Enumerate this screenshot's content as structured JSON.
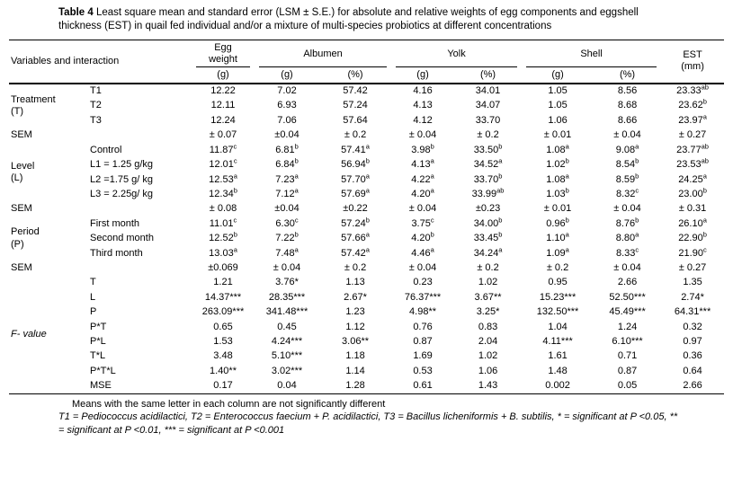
{
  "title": {
    "label": "Table 4",
    "text": "Least square mean and standard error (LSM ± S.E.) for absolute and relative weights of egg components and eggshell thickness (EST) in quail fed individual and/or a mixture of multi-species probiotics at different concentrations"
  },
  "table": {
    "variables_header": "Variables and interaction",
    "groups": [
      {
        "label": "Egg\nweight",
        "subs": [
          "(g)"
        ]
      },
      {
        "label": "Albumen",
        "subs": [
          "(g)",
          "(%)"
        ]
      },
      {
        "label": "Yolk",
        "subs": [
          "(g)",
          "(%)"
        ]
      },
      {
        "label": "Shell",
        "subs": [
          "(g)",
          "(%)"
        ]
      },
      {
        "label": "EST\n(mm)",
        "subs": []
      }
    ],
    "rows": [
      {
        "group": {
          "text": "Treatment\n(T)",
          "rowspan": 3
        },
        "label": "T1",
        "values": [
          "12.22",
          "7.02",
          "57.42",
          "4.16",
          "34.01",
          "1.05",
          "8.56",
          "23.33^ab"
        ]
      },
      {
        "label": "T2",
        "values": [
          "12.11",
          "6.93",
          "57.24",
          "4.13",
          "34.07",
          "1.05",
          "8.68",
          "23.62^b"
        ]
      },
      {
        "label": "T3",
        "values": [
          "12.24",
          "7.06",
          "57.64",
          "4.12",
          "33.70",
          "1.06",
          "8.66",
          "23.97^a"
        ]
      },
      {
        "group": {
          "text": "SEM",
          "rowspan": 1
        },
        "label": "",
        "values": [
          "± 0.07",
          "±0.04",
          "± 0.2",
          "± 0.04",
          "± 0.2",
          "± 0.01",
          "± 0.04",
          "± 0.27"
        ]
      },
      {
        "group": {
          "text": "Level\n(L)",
          "rowspan": 4
        },
        "label": "Control",
        "values": [
          "11.87^c",
          "6.81^b",
          "57.41^a",
          "3.98^b",
          "33.50^b",
          "1.08^a",
          "9.08^a",
          "23.77^ab"
        ]
      },
      {
        "label": "L1 = 1.25 g/kg",
        "values": [
          "12.01^c",
          "6.84^b",
          "56.94^b",
          "4.13^a",
          "34.52^a",
          "1.02^b",
          "8.54^b",
          "23.53^ab"
        ]
      },
      {
        "label": "L2 =1.75 g/ kg",
        "values": [
          "12.53^a",
          "7.23^a",
          "57.70^a",
          "4.22^a",
          "33.70^b",
          "1.08^a",
          "8.59^b",
          "24.25^a"
        ]
      },
      {
        "label": "L3 = 2.25g/ kg",
        "values": [
          "12.34^b",
          "7.12^a",
          "57.69^a",
          "4.20^a",
          "33.99^ab",
          "1.03^b",
          "8.32^c",
          "23.00^b"
        ]
      },
      {
        "group": {
          "text": "SEM",
          "rowspan": 1
        },
        "label": "",
        "values": [
          "± 0.08",
          "±0.04",
          "±0.22",
          "± 0.04",
          "±0.23",
          "± 0.01",
          "± 0.04",
          "± 0.31"
        ]
      },
      {
        "group": {
          "text": "Period\n(P)",
          "rowspan": 3
        },
        "label": "First month",
        "values": [
          "11.01^c",
          "6.30^c",
          "57.24^b",
          "3.75^c",
          "34.00^b",
          "0.96^b",
          "8.76^b",
          "26.10^a"
        ]
      },
      {
        "label": "Second month",
        "values": [
          "12.52^b",
          "7.22^b",
          "57.66^a",
          "4.20^b",
          "33.45^b",
          "1.10^a",
          "8.80^a",
          "22.90^b"
        ]
      },
      {
        "label": "Third month",
        "values": [
          "13.03^a",
          "7.48^a",
          "57.42^a",
          "4.46^a",
          "34.24^a",
          "1.09^a",
          "8.33^c",
          "21.90^c"
        ]
      },
      {
        "group": {
          "text": "SEM",
          "rowspan": 1
        },
        "label": "",
        "values": [
          "±0.069",
          "± 0.04",
          "± 0.2",
          "± 0.04",
          "± 0.2",
          "± 0.2",
          "± 0.04",
          "± 0.27"
        ]
      },
      {
        "group": {
          "text": "F- value",
          "rowspan": 8,
          "italic": true
        },
        "label": "T",
        "values": [
          "1.21",
          "3.76*",
          "1.13",
          "0.23",
          "1.02",
          "0.95",
          "2.66",
          "1.35"
        ]
      },
      {
        "label": "L",
        "values": [
          "14.37***",
          "28.35***",
          "2.67*",
          "76.37***",
          "3.67**",
          "15.23***",
          "52.50***",
          "2.74*"
        ]
      },
      {
        "label": "P",
        "values": [
          "263.09***",
          "341.48***",
          "1.23",
          "4.98**",
          "3.25*",
          "132.50***",
          "45.49***",
          "64.31***"
        ]
      },
      {
        "label": "P*T",
        "values": [
          "0.65",
          "0.45",
          "1.12",
          "0.76",
          "0.83",
          "1.04",
          "1.24",
          "0.32"
        ]
      },
      {
        "label": "P*L",
        "values": [
          "1.53",
          "4.24***",
          "3.06**",
          "0.87",
          "2.04",
          "4.11***",
          "6.10***",
          "0.97"
        ]
      },
      {
        "label": "T*L",
        "values": [
          "3.48",
          "5.10***",
          "1.18",
          "1.69",
          "1.02",
          "1.61",
          "0.71",
          "0.36"
        ]
      },
      {
        "label": "P*T*L",
        "values": [
          "1.40**",
          "3.02***",
          "1.14",
          "0.53",
          "1.06",
          "1.48",
          "0.87",
          "0.64"
        ]
      },
      {
        "label": "MSE",
        "values": [
          "0.17",
          "0.04",
          "1.28",
          "0.61",
          "1.43",
          "0.002",
          "0.05",
          "2.66"
        ]
      }
    ]
  },
  "footnotes": {
    "line1": "Means with the same letter in each column are not significantly different",
    "line2": "T1 = Pediococcus acidilactici, T2 = Enterococcus faecium + P. acidilactici, T3 = Bacillus licheniformis + B. subtilis, * = significant at P <0.05, ** = significant at P <0.01, *** = significant at P <0.001"
  }
}
